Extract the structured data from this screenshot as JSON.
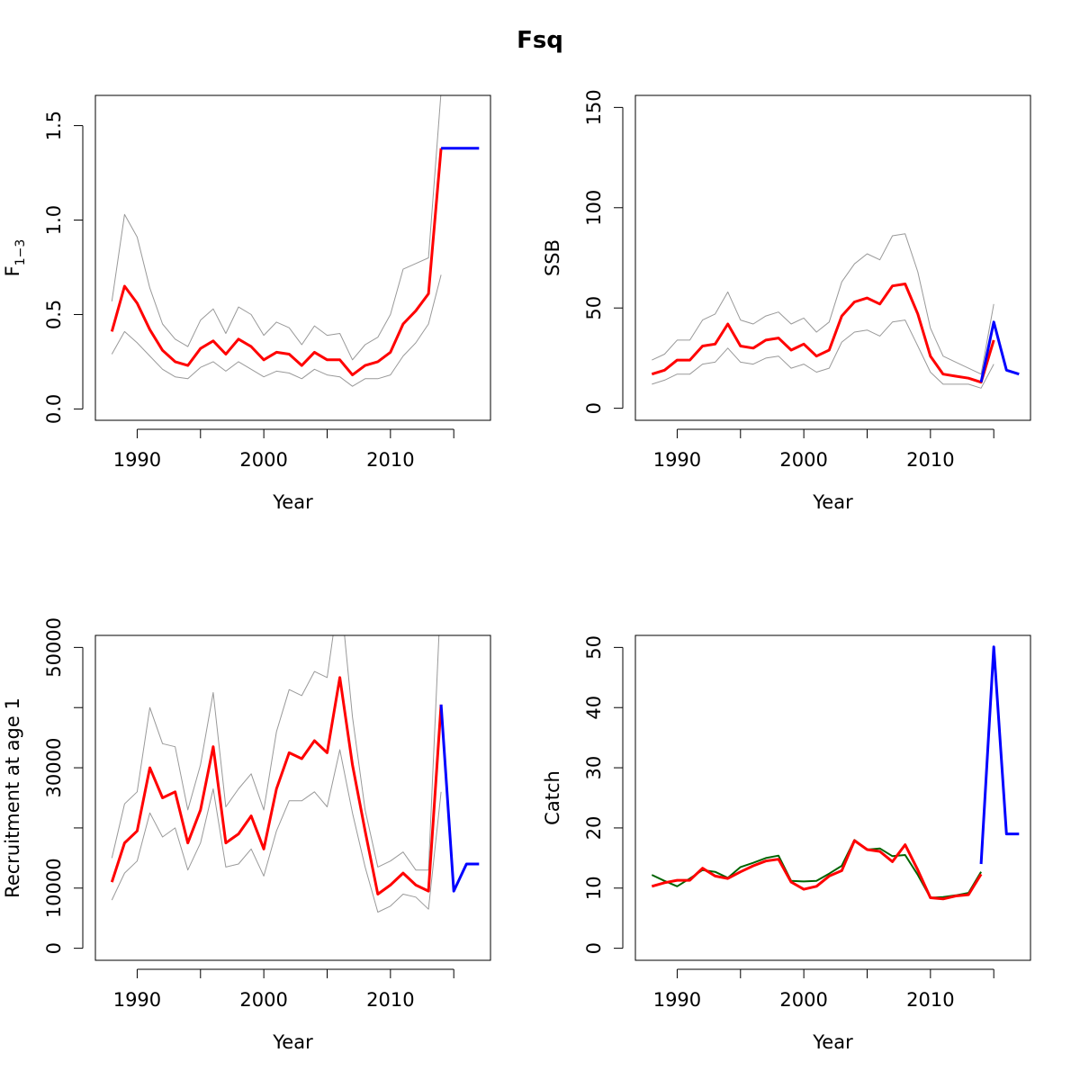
{
  "figure": {
    "title": "Fsq"
  },
  "colors": {
    "ci": "#999999",
    "est": "#ff0000",
    "proj": "#0000ff",
    "obs": "#006400",
    "axis": "#000000"
  },
  "chart_data": [
    {
      "type": "line",
      "xlabel": "Year",
      "ylabel_main": "F",
      "ylabel_sub": "1−3",
      "xlim": [
        1986.7,
        2017.9
      ],
      "ylim": [
        -0.06,
        1.66
      ],
      "xticks": [
        1990,
        1995,
        2000,
        2005,
        2010,
        2015
      ],
      "xtick_labels": [
        "1990",
        "",
        "2000",
        "",
        "2010",
        ""
      ],
      "yticks": [
        0.0,
        0.5,
        1.0,
        1.5
      ],
      "ytick_labels": [
        "0.0",
        "0.5",
        "1.0",
        "1.5"
      ],
      "series": [
        {
          "role": "lower",
          "x": [
            1988,
            1989,
            1990,
            1991,
            1992,
            1993,
            1994,
            1995,
            1996,
            1997,
            1998,
            1999,
            2000,
            2001,
            2002,
            2003,
            2004,
            2005,
            2006,
            2007,
            2008,
            2009,
            2010,
            2011,
            2012,
            2013,
            2014
          ],
          "values": [
            0.29,
            0.41,
            0.35,
            0.28,
            0.21,
            0.17,
            0.16,
            0.22,
            0.25,
            0.2,
            0.25,
            0.21,
            0.17,
            0.2,
            0.19,
            0.16,
            0.21,
            0.18,
            0.17,
            0.12,
            0.16,
            0.16,
            0.18,
            0.28,
            0.35,
            0.45,
            0.71
          ]
        },
        {
          "role": "upper",
          "x": [
            1988,
            1989,
            1990,
            1991,
            1992,
            1993,
            1994,
            1995,
            1996,
            1997,
            1998,
            1999,
            2000,
            2001,
            2002,
            2003,
            2004,
            2005,
            2006,
            2007,
            2008,
            2009,
            2010,
            2011,
            2012,
            2013,
            2014
          ],
          "values": [
            0.57,
            1.03,
            0.91,
            0.64,
            0.45,
            0.37,
            0.33,
            0.47,
            0.53,
            0.4,
            0.54,
            0.5,
            0.39,
            0.46,
            0.43,
            0.34,
            0.44,
            0.39,
            0.4,
            0.26,
            0.34,
            0.38,
            0.5,
            0.74,
            0.77,
            0.8,
            1.68
          ]
        },
        {
          "role": "estimate",
          "x": [
            1988,
            1989,
            1990,
            1991,
            1992,
            1993,
            1994,
            1995,
            1996,
            1997,
            1998,
            1999,
            2000,
            2001,
            2002,
            2003,
            2004,
            2005,
            2006,
            2007,
            2008,
            2009,
            2010,
            2011,
            2012,
            2013,
            2014
          ],
          "values": [
            0.41,
            0.65,
            0.56,
            0.42,
            0.31,
            0.25,
            0.23,
            0.32,
            0.36,
            0.29,
            0.37,
            0.33,
            0.26,
            0.3,
            0.29,
            0.23,
            0.3,
            0.26,
            0.26,
            0.18,
            0.23,
            0.25,
            0.3,
            0.45,
            0.52,
            0.61,
            1.38
          ]
        },
        {
          "role": "projection",
          "x": [
            2014,
            2015,
            2016,
            2017
          ],
          "values": [
            1.38,
            1.38,
            1.38,
            1.38
          ]
        }
      ]
    },
    {
      "type": "line",
      "xlabel": "Year",
      "ylabel_main": "SSB",
      "ylabel_sub": "",
      "xlim": [
        1986.7,
        2017.9
      ],
      "ylim": [
        -6,
        156
      ],
      "xticks": [
        1990,
        1995,
        2000,
        2005,
        2010,
        2015
      ],
      "xtick_labels": [
        "1990",
        "",
        "2000",
        "",
        "2010",
        ""
      ],
      "yticks": [
        0,
        50,
        100,
        150
      ],
      "ytick_labels": [
        "0",
        "50",
        "100",
        "150"
      ],
      "series": [
        {
          "role": "lower",
          "x": [
            1988,
            1989,
            1990,
            1991,
            1992,
            1993,
            1994,
            1995,
            1996,
            1997,
            1998,
            1999,
            2000,
            2001,
            2002,
            2003,
            2004,
            2005,
            2006,
            2007,
            2008,
            2009,
            2010,
            2011,
            2012,
            2013,
            2014,
            2015
          ],
          "values": [
            12,
            14,
            17,
            17,
            22,
            23,
            30,
            23,
            22,
            25,
            26,
            20,
            22,
            18,
            20,
            33,
            38,
            39,
            36,
            43,
            44,
            31,
            18,
            12,
            12,
            12,
            10,
            22
          ]
        },
        {
          "role": "upper",
          "x": [
            1988,
            1989,
            1990,
            1991,
            1992,
            1993,
            1994,
            1995,
            1996,
            1997,
            1998,
            1999,
            2000,
            2001,
            2002,
            2003,
            2004,
            2005,
            2006,
            2007,
            2008,
            2009,
            2010,
            2011,
            2012,
            2013,
            2014,
            2015
          ],
          "values": [
            24,
            27,
            34,
            34,
            44,
            47,
            58,
            44,
            42,
            46,
            48,
            42,
            45,
            38,
            43,
            63,
            72,
            77,
            74,
            86,
            87,
            68,
            40,
            26,
            23,
            20,
            17,
            52
          ]
        },
        {
          "role": "estimate",
          "x": [
            1988,
            1989,
            1990,
            1991,
            1992,
            1993,
            1994,
            1995,
            1996,
            1997,
            1998,
            1999,
            2000,
            2001,
            2002,
            2003,
            2004,
            2005,
            2006,
            2007,
            2008,
            2009,
            2010,
            2011,
            2012,
            2013,
            2014,
            2015
          ],
          "values": [
            17,
            19,
            24,
            24,
            31,
            32,
            42,
            31,
            30,
            34,
            35,
            29,
            32,
            26,
            29,
            46,
            53,
            55,
            52,
            61,
            62,
            47,
            26,
            17,
            16,
            15,
            13,
            34
          ]
        },
        {
          "role": "projection",
          "x": [
            2014,
            2015,
            2016,
            2017
          ],
          "values": [
            13,
            43,
            19,
            17
          ]
        }
      ]
    },
    {
      "type": "line",
      "xlabel": "Year",
      "ylabel_main": "Recruitment at age 1",
      "ylabel_sub": "",
      "xlim": [
        1986.7,
        2017.9
      ],
      "ylim": [
        -2000,
        52000
      ],
      "xticks": [
        1990,
        1995,
        2000,
        2005,
        2010,
        2015
      ],
      "xtick_labels": [
        "1990",
        "",
        "2000",
        "",
        "2010",
        ""
      ],
      "yticks": [
        0,
        10000,
        20000,
        30000,
        40000,
        50000
      ],
      "ytick_labels": [
        "0",
        "10000",
        "",
        "30000",
        "",
        "50000"
      ],
      "series": [
        {
          "role": "lower",
          "x": [
            1988,
            1989,
            1990,
            1991,
            1992,
            1993,
            1994,
            1995,
            1996,
            1997,
            1998,
            1999,
            2000,
            2001,
            2002,
            2003,
            2004,
            2005,
            2006,
            2007,
            2008,
            2009,
            2010,
            2011,
            2012,
            2013,
            2014
          ],
          "values": [
            8000,
            12500,
            14500,
            22500,
            18500,
            20000,
            13000,
            17500,
            26500,
            13500,
            14000,
            16500,
            12000,
            19500,
            24500,
            24500,
            26000,
            23500,
            33000,
            22500,
            13500,
            6000,
            7000,
            9000,
            8500,
            6500,
            26000
          ]
        },
        {
          "role": "upper",
          "x": [
            1988,
            1989,
            1990,
            1991,
            1992,
            1993,
            1994,
            1995,
            1996,
            1997,
            1998,
            1999,
            2000,
            2001,
            2002,
            2003,
            2004,
            2005,
            2006,
            2007,
            2008,
            2009,
            2010,
            2011,
            2012,
            2013,
            2014
          ],
          "values": [
            15000,
            24000,
            26000,
            40000,
            34000,
            33500,
            23000,
            30500,
            42500,
            23500,
            26500,
            29000,
            23000,
            36000,
            43000,
            42000,
            46000,
            45000,
            60000,
            38500,
            23000,
            13500,
            14500,
            16000,
            13000,
            13000,
            60000
          ]
        },
        {
          "role": "estimate",
          "x": [
            1988,
            1989,
            1990,
            1991,
            1992,
            1993,
            1994,
            1995,
            1996,
            1997,
            1998,
            1999,
            2000,
            2001,
            2002,
            2003,
            2004,
            2005,
            2006,
            2007,
            2008,
            2009,
            2010,
            2011,
            2012,
            2013,
            2014
          ],
          "values": [
            11000,
            17500,
            19500,
            30000,
            25000,
            26000,
            17500,
            23000,
            33500,
            17500,
            19000,
            22000,
            16500,
            26500,
            32500,
            31500,
            34500,
            32500,
            45000,
            30500,
            19500,
            9000,
            10500,
            12500,
            10500,
            9500,
            40500
          ]
        },
        {
          "role": "projection",
          "x": [
            2014,
            2015,
            2016,
            2017
          ],
          "values": [
            40500,
            9500,
            14000,
            14000
          ]
        }
      ]
    },
    {
      "type": "line",
      "xlabel": "Year",
      "ylabel_main": "Catch",
      "ylabel_sub": "",
      "xlim": [
        1986.7,
        2017.9
      ],
      "ylim": [
        -2,
        52
      ],
      "xticks": [
        1990,
        1995,
        2000,
        2005,
        2010,
        2015
      ],
      "xtick_labels": [
        "1990",
        "",
        "2000",
        "",
        "2010",
        ""
      ],
      "yticks": [
        0,
        10,
        20,
        30,
        40,
        50
      ],
      "ytick_labels": [
        "0",
        "10",
        "20",
        "30",
        "40",
        "50"
      ],
      "series": [
        {
          "role": "observed",
          "x": [
            1988,
            1989,
            1990,
            1991,
            1992,
            1993,
            1994,
            1995,
            1996,
            1997,
            1998,
            1999,
            2000,
            2001,
            2002,
            2003,
            2004,
            2005,
            2006,
            2007,
            2008,
            2009,
            2010,
            2011,
            2012,
            2013,
            2014
          ],
          "values": [
            12.2,
            11.2,
            10.3,
            11.6,
            13.0,
            12.7,
            11.7,
            13.5,
            14.2,
            15.0,
            15.4,
            11.2,
            11.1,
            11.2,
            12.4,
            13.7,
            18.0,
            16.4,
            16.6,
            15.3,
            15.5,
            12.2,
            8.4,
            8.5,
            8.8,
            9.2,
            12.7
          ]
        },
        {
          "role": "estimate",
          "x": [
            1988,
            1989,
            1990,
            1991,
            1992,
            1993,
            1994,
            1995,
            1996,
            1997,
            1998,
            1999,
            2000,
            2001,
            2002,
            2003,
            2004,
            2005,
            2006,
            2007,
            2008,
            2009,
            2010,
            2011,
            2012,
            2013,
            2014
          ],
          "values": [
            10.3,
            10.9,
            11.3,
            11.3,
            13.3,
            12.0,
            11.6,
            12.7,
            13.7,
            14.5,
            14.8,
            11.0,
            9.8,
            10.3,
            12.0,
            12.9,
            17.9,
            16.4,
            16.1,
            14.4,
            17.2,
            13.0,
            8.4,
            8.2,
            8.7,
            8.9,
            12.3
          ]
        },
        {
          "role": "projection",
          "x": [
            2014,
            2015,
            2016,
            2017
          ],
          "values": [
            14.0,
            50.1,
            19.0,
            19.0
          ]
        }
      ]
    }
  ]
}
